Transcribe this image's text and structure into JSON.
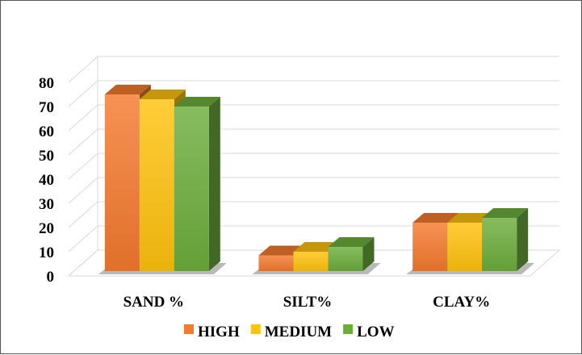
{
  "chart_data": {
    "type": "bar",
    "categories": [
      "SAND %",
      "SILT%",
      "CLAY%"
    ],
    "series": [
      {
        "name": "HIGH",
        "values": [
          73,
          6.5,
          20
        ],
        "color": "#F47A2E"
      },
      {
        "name": "MEDIUM",
        "values": [
          71,
          8,
          20
        ],
        "color": "#FFC20E"
      },
      {
        "name": "LOW",
        "values": [
          68,
          10,
          22
        ],
        "color": "#6DAD3C"
      }
    ],
    "yticks": [
      0,
      10,
      20,
      30,
      40,
      50,
      60,
      70,
      80
    ],
    "ylim": [
      0,
      80
    ],
    "grid": true,
    "legend": "bottom",
    "style": "3d-clustered-column"
  }
}
